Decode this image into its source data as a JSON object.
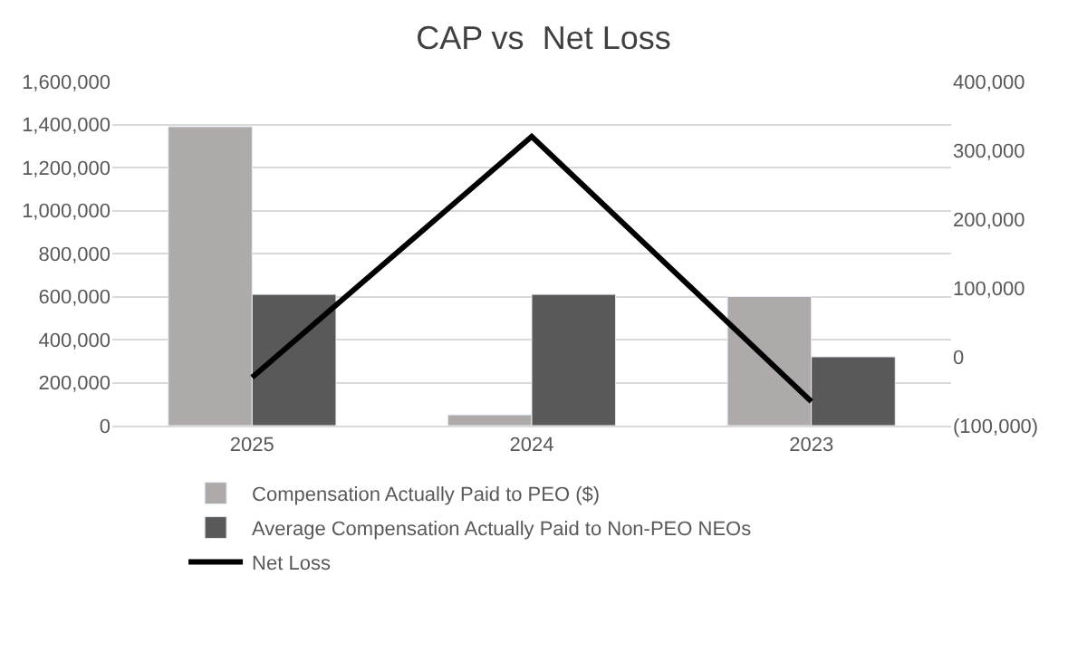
{
  "chart_data": {
    "type": "bar",
    "title": "CAP vs  Net Loss",
    "categories": [
      "2025",
      "2024",
      "2023"
    ],
    "series": [
      {
        "name": "Compensation Actually Paid to PEO ($)",
        "color": "#aeaaaa",
        "values": [
          1390000,
          50000,
          600000
        ]
      },
      {
        "name": "Average Compensation Actually Paid to Non-PEO NEOs",
        "color": "#595959",
        "values": [
          610000,
          610000,
          320000
        ]
      },
      {
        "name": "Net Loss",
        "type": "line",
        "axis": "y2",
        "color": "#000000",
        "values": [
          -30000,
          320000,
          -65000
        ]
      }
    ],
    "ylim": [
      0,
      1600000
    ],
    "yticks": [
      {
        "value": 0,
        "label": "0"
      },
      {
        "value": 200000,
        "label": "200,000"
      },
      {
        "value": 400000,
        "label": "400,000"
      },
      {
        "value": 600000,
        "label": "600,000"
      },
      {
        "value": 800000,
        "label": "800,000"
      },
      {
        "value": 1000000,
        "label": "1,000,000"
      },
      {
        "value": 1200000,
        "label": "1,200,000"
      },
      {
        "value": 1400000,
        "label": "1,400,000"
      },
      {
        "value": 1600000,
        "label": "1,600,000"
      }
    ],
    "y2lim": [
      -100000,
      400000
    ],
    "y2ticks": [
      {
        "value": -100000,
        "label": "(100,000)"
      },
      {
        "value": 0,
        "label": "0"
      },
      {
        "value": 100000,
        "label": "100,000"
      },
      {
        "value": 200000,
        "label": "200,000"
      },
      {
        "value": 300000,
        "label": "300,000"
      },
      {
        "value": 400000,
        "label": "400,000"
      }
    ],
    "grid": "y",
    "legend": "bottom",
    "marker": "none"
  }
}
